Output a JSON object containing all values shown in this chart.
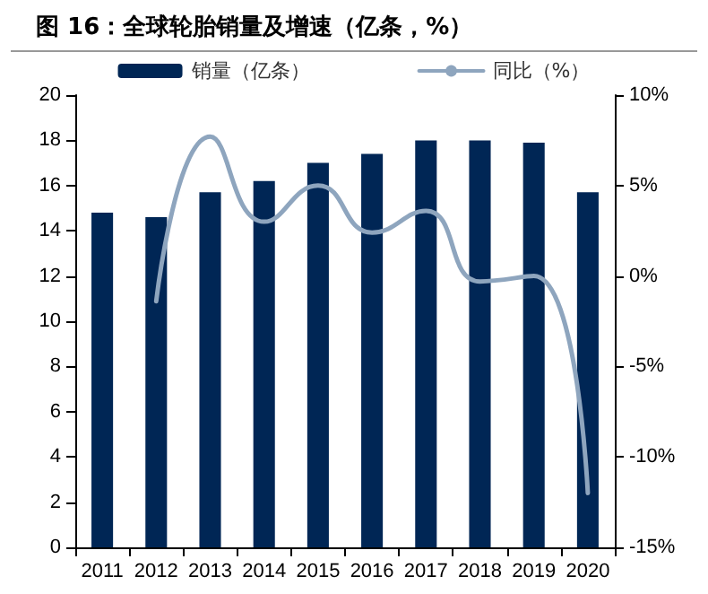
{
  "chart_data": {
    "type": "bar",
    "title": "图 16：全球轮胎销量及增速（亿条，%）",
    "categories": [
      "2011",
      "2012",
      "2013",
      "2014",
      "2015",
      "2016",
      "2017",
      "2018",
      "2019",
      "2020"
    ],
    "series": [
      {
        "name": "销量（亿条）",
        "color": "#002655",
        "values": [
          14.8,
          14.6,
          15.7,
          16.2,
          17.0,
          17.4,
          18.0,
          18.0,
          17.9,
          15.7
        ]
      },
      {
        "name": "同比（%）",
        "type": "line",
        "axis": "y2",
        "color": "#8ea5be",
        "values": [
          null,
          -1.4,
          7.7,
          3.0,
          5.0,
          2.4,
          3.6,
          -0.3,
          0.0,
          -12.0
        ]
      }
    ],
    "ylim": [
      0,
      20
    ],
    "yticks": [
      0,
      2,
      4,
      6,
      8,
      10,
      12,
      14,
      16,
      18,
      20
    ],
    "y2lim": [
      -15,
      10
    ],
    "y2ticks": [
      {
        "value": -15,
        "label": "-15%"
      },
      {
        "value": -10,
        "label": "-10%"
      },
      {
        "value": -5,
        "label": "-5%"
      },
      {
        "value": 0,
        "label": "0%"
      },
      {
        "value": 5,
        "label": "5%"
      },
      {
        "value": 10,
        "label": "10%"
      }
    ],
    "legend": "top",
    "grid": false,
    "marker": "none",
    "line_style": "solid"
  }
}
